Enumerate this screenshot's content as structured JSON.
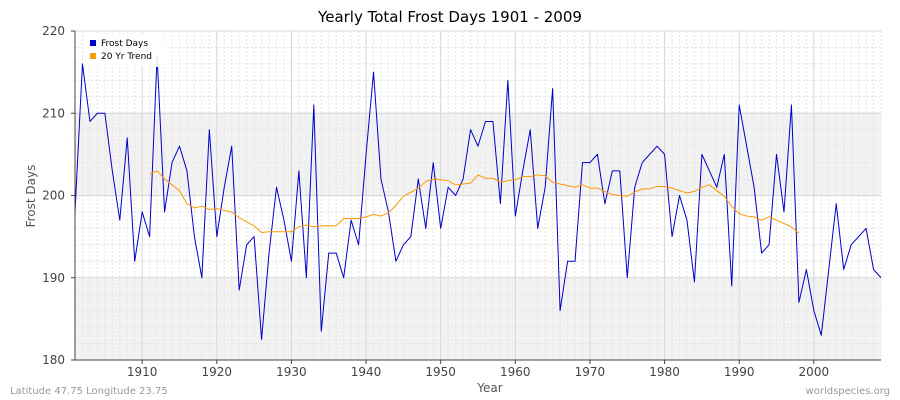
{
  "chart_data": {
    "type": "line",
    "title": "Yearly Total Frost Days 1901 - 2009",
    "xlabel": "Year",
    "ylabel": "Frost Days",
    "xlim": [
      1901,
      2009
    ],
    "ylim": [
      180,
      220
    ],
    "x_ticks": [
      1910,
      1920,
      1930,
      1940,
      1950,
      1960,
      1970,
      1980,
      1990,
      2000
    ],
    "y_ticks": [
      180,
      190,
      200,
      210,
      220
    ],
    "grid": true,
    "legend_position": "top-left",
    "series": [
      {
        "name": "Frost Days",
        "color": "#0000cc",
        "x_start": 1901,
        "values": [
          198,
          216,
          209,
          210,
          210,
          203,
          197,
          207,
          192,
          198,
          195,
          217,
          198,
          204,
          206,
          203,
          195,
          190,
          208,
          195,
          201,
          206,
          188.5,
          194,
          195,
          182.5,
          193,
          201,
          197,
          192,
          203,
          190,
          211,
          183.5,
          193,
          193,
          190,
          197,
          194,
          205,
          215,
          202,
          198,
          192,
          194,
          195,
          202,
          196,
          204,
          196,
          201,
          200,
          202,
          208,
          206,
          209,
          209,
          199,
          214,
          197.5,
          203,
          208,
          196,
          201,
          213,
          186,
          192,
          192,
          204,
          204,
          205,
          199,
          203,
          203,
          190,
          201,
          204,
          205,
          206,
          205,
          195,
          200,
          197,
          189.5,
          205,
          203,
          201,
          205,
          189,
          211,
          206,
          201,
          193,
          194,
          205,
          198,
          211,
          187,
          191,
          186,
          183,
          191,
          199,
          191,
          194,
          195,
          196,
          191,
          190
        ]
      },
      {
        "name": "20 Yr Trend",
        "color": "#ff9900",
        "x_start": 1911,
        "values": [
          202.6,
          203.0,
          202.0,
          201.3,
          200.6,
          199.0,
          198.5,
          198.7,
          198.3,
          198.4,
          198.2,
          198.0,
          197.3,
          196.8,
          196.3,
          195.5,
          195.6,
          195.6,
          195.6,
          195.6,
          196.2,
          196.4,
          196.2,
          196.3,
          196.3,
          196.3,
          197.2,
          197.2,
          197.2,
          197.4,
          197.7,
          197.5,
          197.9,
          198.8,
          199.9,
          200.4,
          200.9,
          201.7,
          202.0,
          201.9,
          201.8,
          201.3,
          201.4,
          201.5,
          202.5,
          202.1,
          202.1,
          201.6,
          201.8,
          201.9,
          202.3,
          202.3,
          202.5,
          202.4,
          201.6,
          201.4,
          201.2,
          201.0,
          201.3,
          200.9,
          200.9,
          200.5,
          200.1,
          200.0,
          199.9,
          200.4,
          200.8,
          200.8,
          201.1,
          201.1,
          200.9,
          200.6,
          200.3,
          200.5,
          201.0,
          201.3,
          200.6,
          199.9,
          198.7,
          197.8,
          197.5,
          197.4,
          197.0,
          197.4,
          197.0,
          196.6,
          196.2,
          195.4
        ]
      }
    ]
  },
  "footer": {
    "left": "Latitude 47.75 Longitude 23.75",
    "right": "worldspecies.org"
  }
}
